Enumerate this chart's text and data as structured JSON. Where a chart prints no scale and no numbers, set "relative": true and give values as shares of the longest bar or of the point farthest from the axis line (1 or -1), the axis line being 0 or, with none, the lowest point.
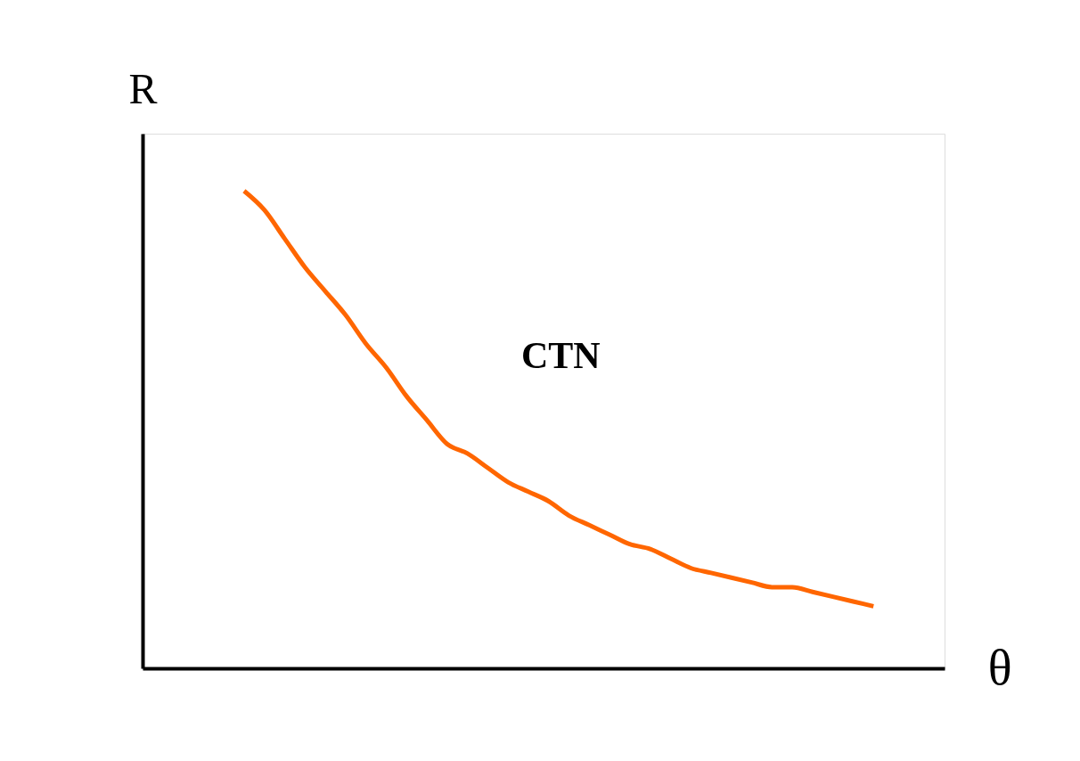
{
  "chart_data": {
    "type": "line",
    "relative": true,
    "xlabel": "θ",
    "ylabel": "R",
    "annotations": [
      "CTN"
    ],
    "grid": false,
    "legend": false,
    "marker": "none",
    "line_style": "solid",
    "categories": [
      null,
      null,
      null,
      null,
      null,
      null,
      null,
      null,
      null,
      null,
      null,
      null,
      null,
      null,
      null,
      null,
      null,
      null,
      null,
      null,
      null,
      null,
      null,
      null,
      null,
      null,
      null,
      null,
      null,
      null,
      null,
      null,
      null,
      null,
      null,
      null,
      null
    ],
    "series": [
      {
        "color": "#ff6600",
        "values": [
          null,
          null,
          null,
          null,
          null,
          1.0,
          0.96,
          0.9,
          0.84,
          0.79,
          0.74,
          0.68,
          0.63,
          0.57,
          0.52,
          0.47,
          0.45,
          0.42,
          0.39,
          0.37,
          0.35,
          0.32,
          0.3,
          0.28,
          0.26,
          0.25,
          0.23,
          0.21,
          0.2,
          0.19,
          0.18,
          0.17,
          0.17,
          0.16,
          0.15,
          0.14,
          0.13
        ]
      }
    ]
  }
}
